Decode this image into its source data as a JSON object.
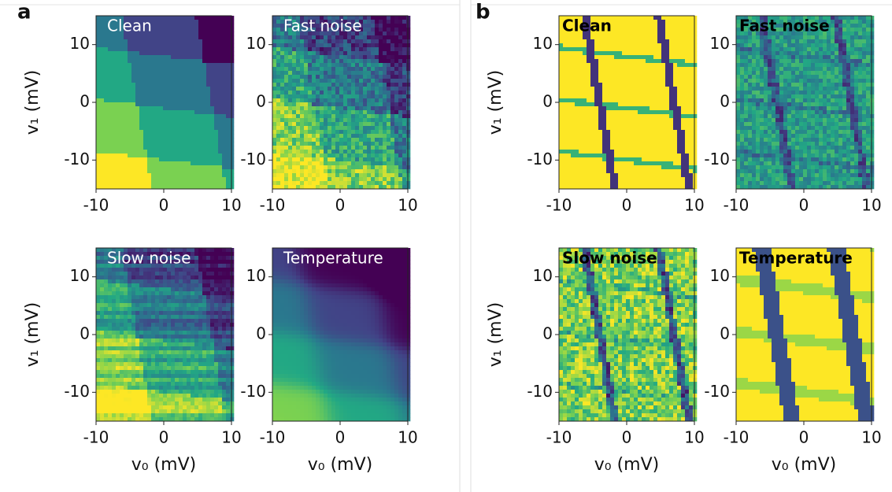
{
  "panel_labels": [
    "a",
    "b"
  ],
  "chart_data": [
    {
      "type": "heatmap",
      "style": "occupation",
      "title": "Clean",
      "ylabel": "v₁ (mV)",
      "xlim": [
        -10,
        10
      ],
      "ylim": [
        -15,
        15
      ],
      "xticks": [
        -10,
        0,
        10
      ],
      "yticks": [
        -10,
        0,
        10
      ]
    },
    {
      "type": "heatmap",
      "style": "occupation",
      "title": "Fast noise",
      "xlim": [
        -10,
        10
      ],
      "ylim": [
        -15,
        15
      ],
      "xticks": [
        -10,
        0,
        10
      ],
      "yticks": [
        -10,
        0,
        10
      ]
    },
    {
      "type": "heatmap",
      "style": "occupation",
      "title": "Slow noise",
      "ylabel": "v₁ (mV)",
      "xlabel": "v₀ (mV)",
      "xlim": [
        -10,
        10
      ],
      "ylim": [
        -15,
        15
      ],
      "xticks": [
        -10,
        0,
        10
      ],
      "yticks": [
        -10,
        0,
        10
      ]
    },
    {
      "type": "heatmap",
      "style": "occupation",
      "title": "Temperature",
      "xlabel": "v₀ (mV)",
      "xlim": [
        -10,
        10
      ],
      "ylim": [
        -15,
        15
      ],
      "xticks": [
        -10,
        0,
        10
      ],
      "yticks": [
        -10,
        0,
        10
      ]
    },
    {
      "type": "heatmap",
      "style": "derivative",
      "title": "Clean",
      "ylabel": "v₁ (mV)",
      "xlim": [
        -10,
        10
      ],
      "ylim": [
        -15,
        15
      ],
      "xticks": [
        -10,
        0,
        10
      ],
      "yticks": [
        -10,
        0,
        10
      ]
    },
    {
      "type": "heatmap",
      "style": "derivative",
      "title": "Fast noise",
      "xlim": [
        -10,
        10
      ],
      "ylim": [
        -15,
        15
      ],
      "xticks": [
        -10,
        0,
        10
      ],
      "yticks": [
        -10,
        0,
        10
      ]
    },
    {
      "type": "heatmap",
      "style": "derivative",
      "title": "Slow noise",
      "ylabel": "v₁ (mV)",
      "xlabel": "v₀ (mV)",
      "xlim": [
        -10,
        10
      ],
      "ylim": [
        -15,
        15
      ],
      "xticks": [
        -10,
        0,
        10
      ],
      "yticks": [
        -10,
        0,
        10
      ]
    },
    {
      "type": "heatmap",
      "style": "derivative",
      "title": "Temperature",
      "xlabel": "v₀ (mV)",
      "xlim": [
        -10,
        10
      ],
      "ylim": [
        -15,
        15
      ],
      "xticks": [
        -10,
        0,
        10
      ],
      "yticks": [
        -10,
        0,
        10
      ]
    }
  ]
}
